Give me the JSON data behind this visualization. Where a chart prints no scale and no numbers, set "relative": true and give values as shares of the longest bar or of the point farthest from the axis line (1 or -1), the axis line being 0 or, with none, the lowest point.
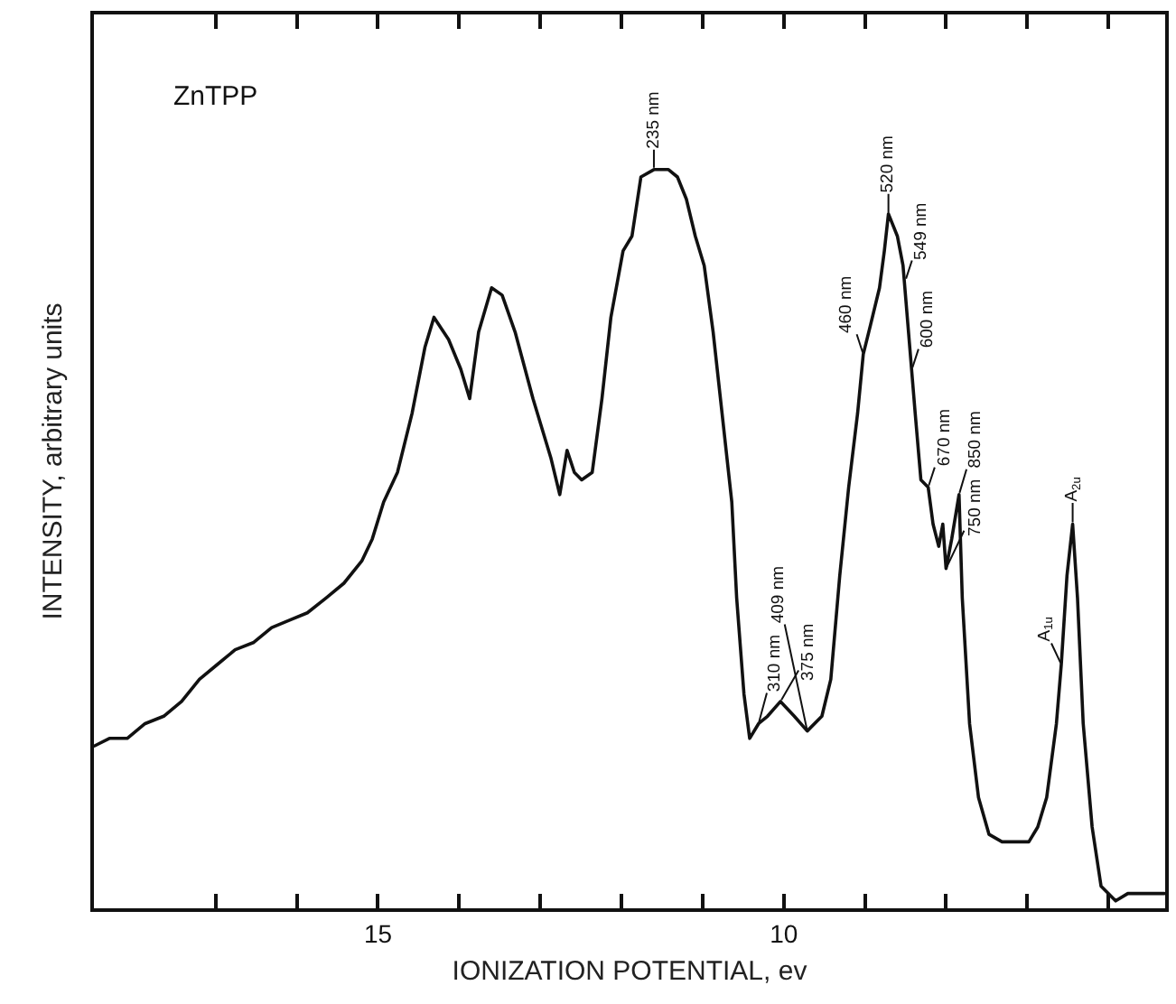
{
  "chart_data": {
    "type": "line",
    "relative": true,
    "xlabel": "IONIZATION POTENTIAL, ev",
    "ylabel": "INTENSITY, arbitrary units",
    "color": "#111111",
    "marker": "none",
    "line_style": "solid",
    "grid": false,
    "tick_labels": "x",
    "xlim": [
      18.5,
      5.3
    ],
    "xticks": [
      {
        "value": 17,
        "label": null
      },
      {
        "value": 16,
        "label": null
      },
      15,
      {
        "value": 14,
        "label": null
      },
      {
        "value": 13,
        "label": null
      },
      {
        "value": 12,
        "label": null
      },
      {
        "value": 11,
        "label": null
      },
      10,
      {
        "value": 9,
        "label": null
      },
      {
        "value": 8,
        "label": null
      },
      {
        "value": 7,
        "label": null
      },
      {
        "value": 6,
        "label": null
      }
    ],
    "x": [
      18.49,
      18.31,
      18.09,
      17.87,
      17.64,
      17.42,
      17.2,
      16.98,
      16.76,
      16.53,
      16.31,
      16.09,
      15.87,
      15.64,
      15.42,
      15.2,
      15.07,
      14.93,
      14.76,
      14.58,
      14.42,
      14.31,
      14.13,
      13.98,
      13.87,
      13.76,
      13.6,
      13.47,
      13.31,
      13.09,
      12.87,
      12.76,
      12.67,
      12.58,
      12.49,
      12.36,
      12.24,
      12.13,
      11.98,
      11.87,
      11.76,
      11.6,
      11.42,
      11.31,
      11.2,
      11.09,
      10.98,
      10.87,
      10.76,
      10.64,
      10.58,
      10.49,
      10.42,
      10.31,
      10.2,
      10.04,
      9.87,
      9.71,
      9.53,
      9.42,
      9.31,
      9.2,
      9.09,
      9.02,
      8.93,
      8.82,
      8.76,
      8.71,
      8.6,
      8.53,
      8.47,
      8.38,
      8.31,
      8.22,
      8.16,
      8.09,
      8.04,
      8.0,
      7.93,
      7.84,
      7.8,
      7.71,
      7.6,
      7.47,
      7.31,
      7.16,
      6.98,
      6.87,
      6.76,
      6.64,
      6.58,
      6.51,
      6.44,
      6.38,
      6.31,
      6.2,
      6.09,
      5.91,
      5.76,
      5.6,
      5.31
    ],
    "values": [
      0.22,
      0.23,
      0.23,
      0.25,
      0.26,
      0.28,
      0.31,
      0.33,
      0.35,
      0.36,
      0.38,
      0.39,
      0.4,
      0.42,
      0.44,
      0.47,
      0.5,
      0.55,
      0.59,
      0.67,
      0.76,
      0.8,
      0.77,
      0.73,
      0.69,
      0.78,
      0.84,
      0.83,
      0.78,
      0.69,
      0.61,
      0.56,
      0.62,
      0.59,
      0.58,
      0.59,
      0.69,
      0.8,
      0.89,
      0.91,
      0.99,
      1.0,
      1.0,
      0.99,
      0.96,
      0.91,
      0.87,
      0.78,
      0.67,
      0.55,
      0.42,
      0.29,
      0.23,
      0.25,
      0.26,
      0.28,
      0.26,
      0.24,
      0.26,
      0.31,
      0.45,
      0.57,
      0.67,
      0.75,
      0.79,
      0.84,
      0.89,
      0.94,
      0.91,
      0.87,
      0.79,
      0.67,
      0.58,
      0.57,
      0.52,
      0.49,
      0.52,
      0.46,
      0.5,
      0.56,
      0.42,
      0.25,
      0.15,
      0.1,
      0.09,
      0.09,
      0.09,
      0.11,
      0.15,
      0.25,
      0.33,
      0.45,
      0.52,
      0.42,
      0.25,
      0.11,
      0.03,
      0.01,
      0.02,
      0.02,
      0.02
    ],
    "annotations": [
      "ZnTPP",
      {
        "text": "235 nm",
        "x": 11.6,
        "y": 1.0
      },
      {
        "text": "460 nm",
        "x": 9.02,
        "y": 0.75
      },
      {
        "text": "520 nm",
        "x": 8.71,
        "y": 0.94
      },
      {
        "text": "549 nm",
        "x": 8.5,
        "y": 0.85
      },
      {
        "text": "600 nm",
        "x": 8.42,
        "y": 0.73
      },
      {
        "text": "670 nm",
        "x": 8.22,
        "y": 0.57
      },
      {
        "text": "750 nm",
        "x": 8.0,
        "y": 0.46
      },
      {
        "text": "850 nm",
        "x": 7.84,
        "y": 0.56
      },
      {
        "text": "310 nm",
        "x": 10.31,
        "y": 0.25
      },
      {
        "text": "375 nm",
        "x": 10.04,
        "y": 0.28
      },
      {
        "text": "409 nm",
        "x": 9.71,
        "y": 0.24
      },
      {
        "text": "A$_{1u}$",
        "x": 6.58,
        "y": 0.33
      },
      {
        "text": "A$_{2u}$",
        "x": 6.44,
        "y": 0.52
      }
    ]
  }
}
